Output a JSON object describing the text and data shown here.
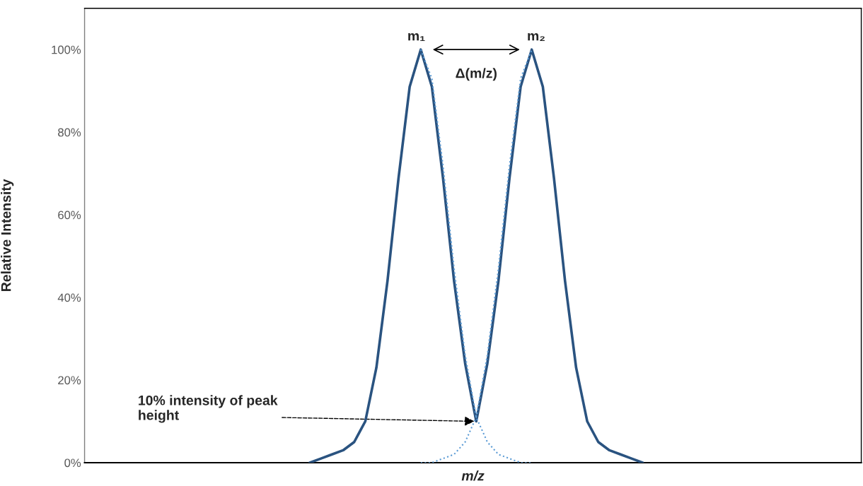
{
  "chart_data": {
    "type": "line",
    "xlabel": "m/z",
    "ylabel": "Relative Intensity",
    "categories": [
      null,
      null,
      null,
      null,
      null,
      null,
      null,
      null,
      null,
      null,
      null,
      null,
      null,
      null,
      null,
      null,
      null,
      null,
      null,
      null,
      null,
      null,
      null,
      null,
      null,
      null,
      null,
      null,
      null,
      null,
      null,
      null,
      null,
      null,
      null,
      null,
      null,
      null,
      null,
      null,
      null,
      null,
      null,
      null,
      null,
      null,
      null,
      null,
      null,
      null,
      null,
      null,
      null,
      null,
      null,
      null,
      null,
      null,
      null,
      null,
      null,
      null,
      null,
      null,
      null,
      null,
      null,
      null,
      null,
      null,
      null
    ],
    "series": [
      {
        "color": "#5b9bd5",
        "line_style": "dotted",
        "values": [
          null,
          null,
          null,
          null,
          null,
          null,
          null,
          null,
          null,
          null,
          null,
          null,
          null,
          null,
          null,
          null,
          null,
          null,
          null,
          null,
          null,
          null,
          null,
          null,
          null,
          null,
          null,
          null,
          null,
          null,
          100,
          93,
          72,
          47,
          26,
          11,
          5,
          2,
          1,
          0,
          0,
          null,
          null,
          null,
          null,
          null,
          null,
          null,
          null,
          null,
          null,
          null,
          null,
          null,
          null,
          null,
          null,
          null,
          null,
          null,
          null,
          null,
          null,
          null,
          null,
          null,
          null,
          null,
          null,
          null,
          null
        ]
      },
      {
        "color": "#5b9bd5",
        "line_style": "dotted",
        "values": [
          null,
          null,
          null,
          null,
          null,
          null,
          null,
          null,
          null,
          null,
          null,
          null,
          null,
          null,
          null,
          null,
          null,
          null,
          null,
          null,
          null,
          null,
          null,
          null,
          null,
          null,
          null,
          null,
          null,
          null,
          0,
          0,
          1,
          2,
          5,
          11,
          26,
          47,
          72,
          93,
          100,
          null,
          null,
          null,
          null,
          null,
          null,
          null,
          null,
          null,
          null,
          null,
          null,
          null,
          null,
          null,
          null,
          null,
          null,
          null,
          null,
          null,
          null,
          null,
          null,
          null,
          null,
          null,
          null,
          null,
          null
        ]
      },
      {
        "color": "#2a5380",
        "line_style": "solid",
        "values": [
          null,
          null,
          null,
          null,
          null,
          null,
          null,
          null,
          null,
          null,
          null,
          null,
          null,
          null,
          null,
          null,
          null,
          null,
          null,
          null,
          0,
          1,
          2,
          3,
          5,
          10,
          23,
          44,
          69,
          91,
          100,
          91,
          69,
          44,
          24,
          10,
          24,
          44,
          69,
          91,
          100,
          91,
          69,
          44,
          23,
          10,
          5,
          3,
          2,
          1,
          0,
          null,
          null,
          null,
          null,
          null,
          null,
          null,
          null,
          null,
          null,
          null,
          null,
          null,
          null,
          null,
          null,
          null,
          null,
          null,
          null
        ]
      }
    ],
    "ylim": [
      0,
      110
    ],
    "yticks": [
      {
        "value": 0,
        "label": "0%"
      },
      {
        "value": 20,
        "label": "20%"
      },
      {
        "value": 40,
        "label": "40%"
      },
      {
        "value": 60,
        "label": "60%"
      },
      {
        "value": 80,
        "label": "80%"
      },
      {
        "value": 100,
        "label": "100%"
      }
    ],
    "tick_labels": "y",
    "grid": false,
    "legend": false,
    "annotations": [
      "m₁",
      "m₂",
      "Δ(m/z)",
      "10% intensity of peak\nheight"
    ]
  }
}
